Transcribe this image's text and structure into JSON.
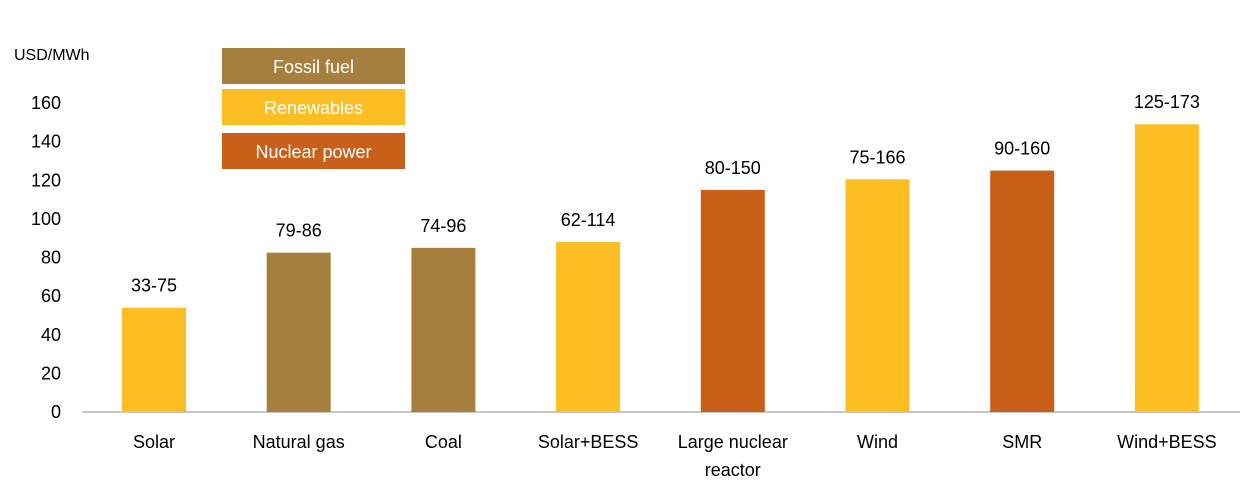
{
  "chart_data": {
    "type": "bar",
    "ylabel": "USD/MWh",
    "ylim": [
      0,
      160
    ],
    "yticks": [
      0,
      20,
      40,
      60,
      80,
      100,
      120,
      140,
      160
    ],
    "grid": false,
    "legend_placement": "top-left",
    "legend": [
      {
        "key": "fossil",
        "label": "Fossil fuel",
        "color": "#A67F3E"
      },
      {
        "key": "renewables",
        "label": "Renewables",
        "color": "#FDBE24"
      },
      {
        "key": "nuclear",
        "label": "Nuclear power",
        "color": "#C8601A"
      }
    ],
    "categories": [
      [
        "Solar"
      ],
      [
        "Natural gas"
      ],
      [
        "Coal"
      ],
      [
        "Solar+BESS"
      ],
      [
        "Large nuclear",
        "reactor"
      ],
      [
        "Wind"
      ],
      [
        "SMR"
      ],
      [
        "Wind+BESS"
      ]
    ],
    "values": [
      54,
      82.5,
      85,
      88,
      115,
      120.5,
      125,
      149
    ],
    "groups": [
      "renewables",
      "fossil",
      "fossil",
      "renewables",
      "nuclear",
      "renewables",
      "nuclear",
      "renewables"
    ],
    "data_labels": [
      "33-75",
      "79-86",
      "74-96",
      "62-114",
      "80-150",
      "75-166",
      "90-160",
      "125-173"
    ]
  }
}
